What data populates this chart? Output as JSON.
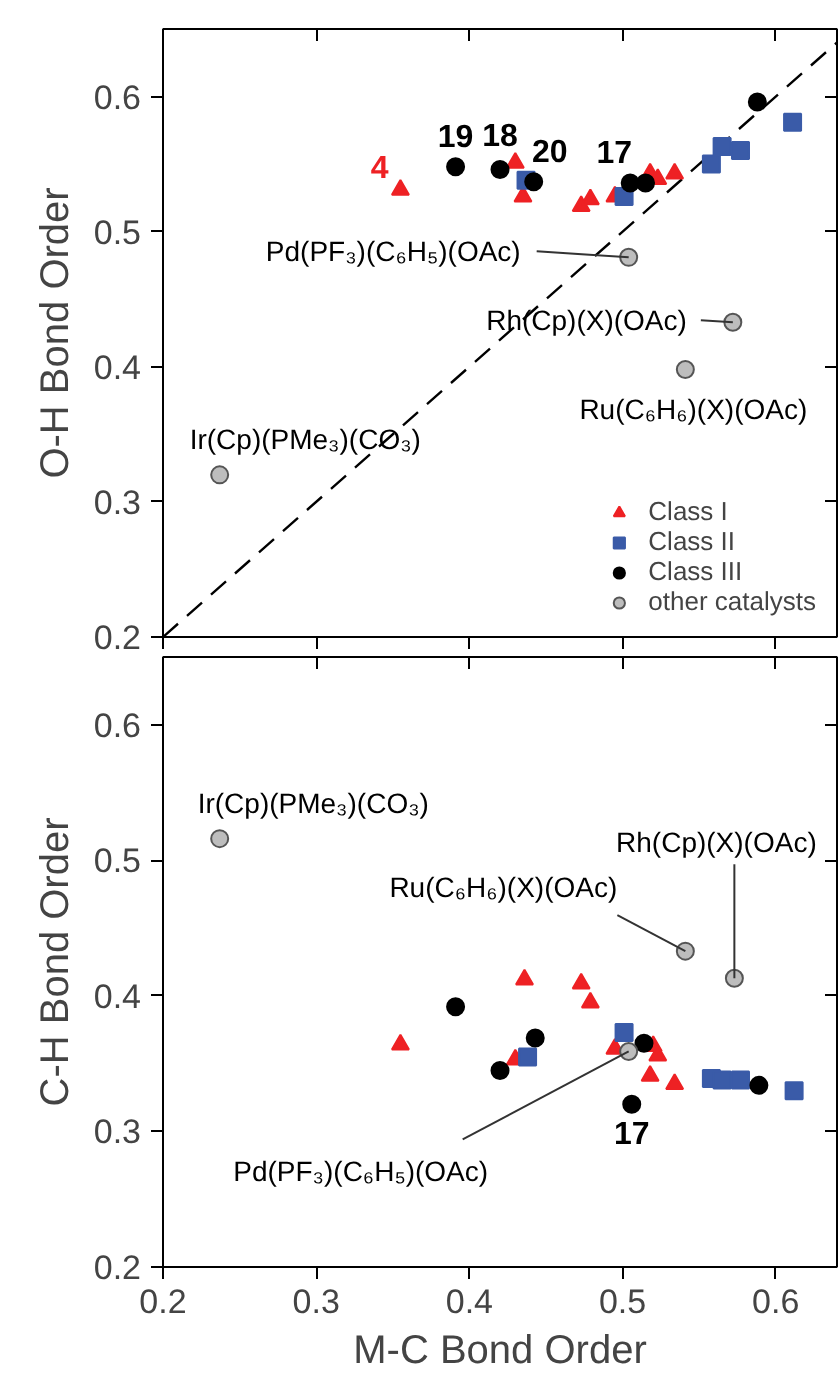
{
  "chart_data": [
    {
      "type": "scatter",
      "ylabel": "O-H Bond Order",
      "xlim": [
        0.2,
        0.64
      ],
      "ylim": [
        0.2,
        0.65
      ],
      "xticks": [
        0.2,
        0.3,
        0.4,
        0.5,
        0.6
      ],
      "yticks": [
        0.2,
        0.3,
        0.4,
        0.5,
        0.6
      ],
      "tick_labels": "y",
      "legend": "bottom right",
      "series": [
        {
          "type": "line",
          "color": "#000000",
          "line_style": "dashed",
          "marker": "none",
          "x": [
            0.2,
            0.64
          ],
          "values": [
            0.2,
            0.64
          ]
        },
        {
          "name": "Class I",
          "color": "#ee2124",
          "marker": "triangle",
          "x": [
            0.355,
            0.43,
            0.435,
            0.473,
            0.479,
            0.495,
            0.518,
            0.523,
            0.534
          ],
          "values": [
            0.531,
            0.551,
            0.526,
            0.519,
            0.524,
            0.526,
            0.543,
            0.539,
            0.543
          ]
        },
        {
          "name": "Class II",
          "color": "#3a5ba8",
          "marker": "square",
          "x": [
            0.437,
            0.501,
            0.558,
            0.565,
            0.577,
            0.611
          ],
          "values": [
            0.538,
            0.526,
            0.55,
            0.563,
            0.56,
            0.581
          ]
        },
        {
          "name": "Class III",
          "color": "#000000",
          "marker": "circle",
          "x": [
            0.391,
            0.42,
            0.442,
            0.505,
            0.515,
            0.588
          ],
          "values": [
            0.548,
            0.546,
            0.537,
            0.536,
            0.536,
            0.596
          ]
        },
        {
          "name": "other catalysts",
          "color": "#bdbdbd",
          "marker": "circle",
          "x": [
            0.504,
            0.572,
            0.541,
            0.237
          ],
          "values": [
            0.481,
            0.433,
            0.398,
            0.32
          ]
        }
      ],
      "annotations": [
        {
          "text": "4",
          "x": 0.355,
          "y": 0.531
        },
        {
          "text": "19",
          "x": 0.391,
          "y": 0.548
        },
        {
          "text": "18",
          "x": 0.42,
          "y": 0.546
        },
        {
          "text": "20",
          "x": 0.442,
          "y": 0.537
        },
        {
          "text": "17",
          "x": 0.505,
          "y": 0.536
        },
        {
          "text": "Pd(PF₃)(C₆H₅)(OAc)",
          "x": 0.504,
          "y": 0.481
        },
        {
          "text": "Rh(Cp)(X)(OAc)",
          "x": 0.572,
          "y": 0.433
        },
        {
          "text": "Ru(C₆H₆)(X)(OAc)",
          "x": 0.541,
          "y": 0.398
        },
        {
          "text": "Ir(Cp)(PMe₃)(CO₃)",
          "x": 0.237,
          "y": 0.32
        }
      ]
    },
    {
      "type": "scatter",
      "xlabel": "M-C Bond Order",
      "ylabel": "C-H Bond Order",
      "xlim": [
        0.2,
        0.64
      ],
      "ylim": [
        0.2,
        0.65
      ],
      "xticks": [
        0.2,
        0.3,
        0.4,
        0.5,
        0.6
      ],
      "yticks": [
        0.2,
        0.3,
        0.4,
        0.5,
        0.6
      ],
      "series": [
        {
          "color": "#ee2124",
          "marker": "triangle",
          "x": [
            0.355,
            0.436,
            0.43,
            0.473,
            0.479,
            0.495,
            0.52,
            0.523,
            0.518,
            0.534
          ],
          "values": [
            0.364,
            0.412,
            0.353,
            0.409,
            0.395,
            0.361,
            0.363,
            0.356,
            0.341,
            0.335
          ]
        },
        {
          "color": "#3a5ba8",
          "marker": "square",
          "x": [
            0.501,
            0.438,
            0.558,
            0.565,
            0.577,
            0.612
          ],
          "values": [
            0.373,
            0.355,
            0.339,
            0.338,
            0.338,
            0.33
          ]
        },
        {
          "color": "#000000",
          "marker": "circle",
          "x": [
            0.391,
            0.42,
            0.443,
            0.506,
            0.514,
            0.589
          ],
          "values": [
            0.392,
            0.345,
            0.369,
            0.32,
            0.365,
            0.334
          ]
        },
        {
          "color": "#bdbdbd",
          "marker": "circle",
          "x": [
            0.237,
            0.541,
            0.573,
            0.504
          ],
          "values": [
            0.516,
            0.433,
            0.413,
            0.359
          ]
        }
      ],
      "annotations": [
        {
          "text": "Ir(Cp)(PMe₃)(CO₃)",
          "x": 0.237,
          "y": 0.516
        },
        {
          "text": "Rh(Cp)(X)(OAc)",
          "x": 0.573,
          "y": 0.413
        },
        {
          "text": "Ru(C₆H₆)(X)(OAc)",
          "x": 0.541,
          "y": 0.433
        },
        {
          "text": "Pd(PF₃)(C₆H₅)(OAc)",
          "x": 0.504,
          "y": 0.359
        },
        {
          "text": "17",
          "x": 0.506,
          "y": 0.32
        }
      ]
    }
  ]
}
